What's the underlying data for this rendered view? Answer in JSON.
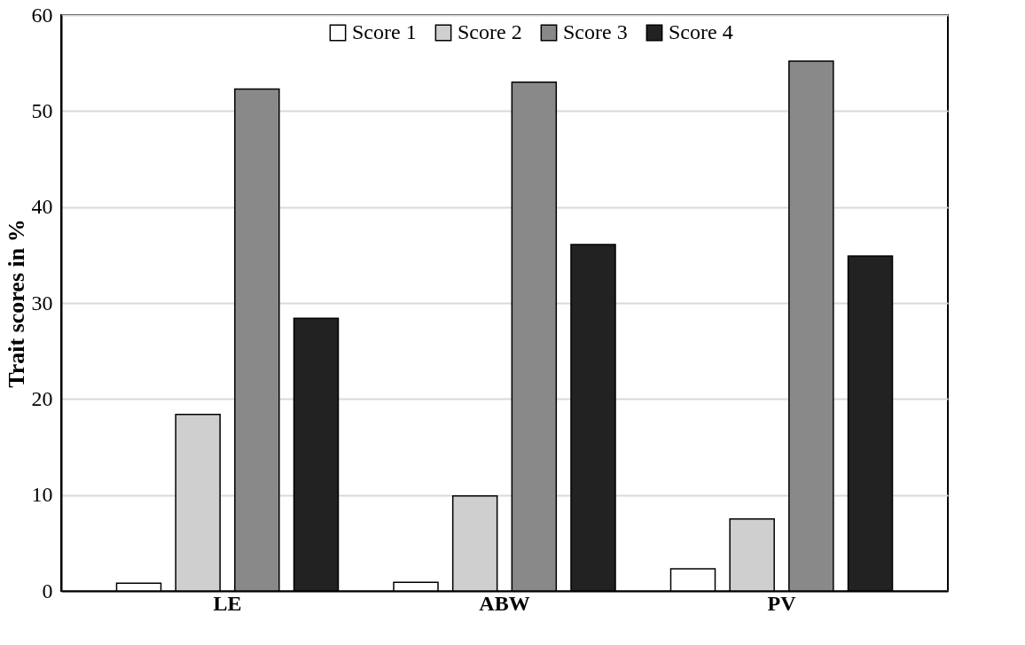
{
  "chart_data": {
    "type": "bar",
    "ylabel": "Trait scores in %",
    "categories": [
      "LE",
      "ABW",
      "PV"
    ],
    "series": [
      {
        "name": "Score 1",
        "color": "#ffffff",
        "values": [
          0.8,
          0.9,
          2.3
        ]
      },
      {
        "name": "Score 2",
        "color": "#d0cfd0",
        "values": [
          18.4,
          9.9,
          7.5
        ]
      },
      {
        "name": "Score 3",
        "color": "#898989",
        "values": [
          52.3,
          53.0,
          55.2
        ]
      },
      {
        "name": "Score 4",
        "color": "#222222",
        "values": [
          28.4,
          36.1,
          34.9
        ]
      }
    ],
    "ylim": [
      0,
      60
    ],
    "yticks": [
      0,
      10,
      20,
      30,
      40,
      50,
      60
    ],
    "grid": "y",
    "legend": "top"
  }
}
